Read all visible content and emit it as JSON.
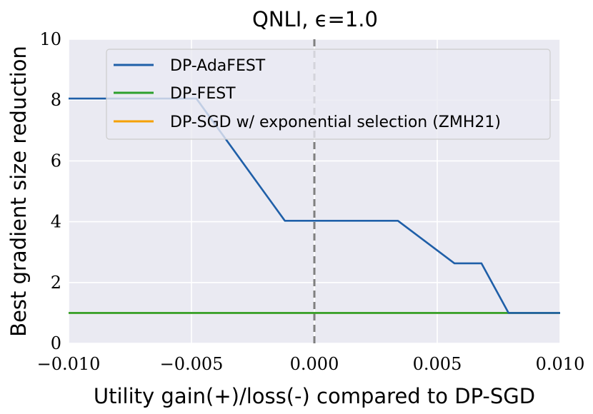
{
  "chart_data": {
    "type": "line",
    "title": "QNLI, ϵ=1.0",
    "xlabel": "Utility gain(+)/loss(-) compared to DP-SGD",
    "ylabel": "Best gradient size reduction",
    "xlim": [
      -0.01,
      0.01
    ],
    "ylim": [
      0,
      10
    ],
    "x_ticks": [
      -0.01,
      -0.005,
      0.0,
      0.005,
      0.01
    ],
    "x_tick_labels": [
      "−0.010",
      "−0.005",
      "0.000",
      "0.005",
      "0.010"
    ],
    "y_ticks": [
      0,
      2,
      4,
      6,
      8,
      10
    ],
    "y_tick_labels": [
      "0",
      "2",
      "4",
      "6",
      "8",
      "10"
    ],
    "grid": true,
    "legend_position": "top-center",
    "vline": {
      "x": 0.0,
      "style": "dashed",
      "color": "#7f7f7f"
    },
    "series": [
      {
        "name": "DP-AdaFEST",
        "color": "#1f5fa8",
        "x": [
          -0.01,
          -0.0048,
          -0.0012,
          0.0034,
          0.0057,
          0.0068,
          0.0079,
          0.01
        ],
        "y": [
          8.05,
          8.05,
          4.03,
          4.03,
          2.63,
          2.63,
          1.0,
          1.0
        ]
      },
      {
        "name": "DP-FEST",
        "color": "#2ca02c",
        "x": [
          -0.01,
          0.01
        ],
        "y": [
          1.0,
          1.0
        ]
      },
      {
        "name": "DP-SGD w/ exponential selection (ZMH21)",
        "color": "#f5a100",
        "x": [
          -0.01,
          0.01
        ],
        "y": [
          1.0,
          1.0
        ]
      }
    ]
  }
}
